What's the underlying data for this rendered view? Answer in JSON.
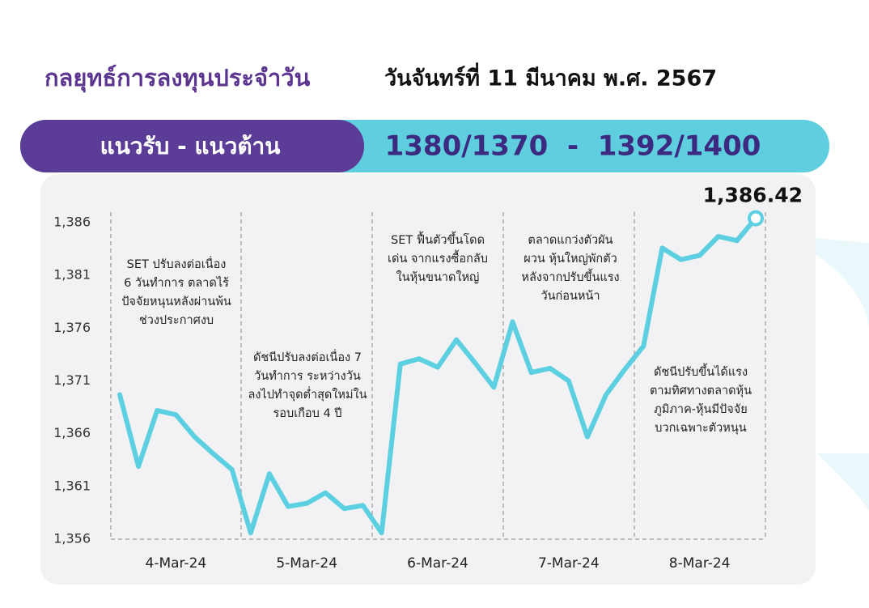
{
  "header": {
    "title": "กลยุทธ์การลงทุนประจำวัน",
    "date": "วันจันทร์ที่ 11 มีนาคม พ.ศ. 2567",
    "band_label": "แนวรับ - แนวต้าน",
    "band_levels": "1380/1370  -  1392/1400"
  },
  "chart_data": {
    "type": "line",
    "categories": [
      null,
      null,
      null,
      "4-Mar-24",
      null,
      null,
      null,
      null,
      null,
      null,
      "5-Mar-24",
      null,
      null,
      null,
      null,
      null,
      null,
      "6-Mar-24",
      null,
      null,
      null,
      null,
      null,
      null,
      "7-Mar-24",
      null,
      null,
      null,
      null,
      null,
      null,
      "8-Mar-24",
      null,
      null,
      null
    ],
    "values": [
      1369.7,
      1362.9,
      1368.2,
      1367.8,
      1365.7,
      1364.1,
      1362.6,
      1356.6,
      1362.2,
      1359.1,
      1359.4,
      1360.4,
      1358.9,
      1359.2,
      1356.6,
      1372.6,
      1373.1,
      1372.3,
      1374.9,
      1372.7,
      1370.4,
      1376.6,
      1371.8,
      1372.2,
      1371.0,
      1365.7,
      1369.7,
      1372.1,
      1374.3,
      1383.6,
      1382.5,
      1382.9,
      1384.7,
      1384.3,
      1386.42
    ],
    "value_labels": [
      null,
      null,
      null,
      null,
      null,
      null,
      null,
      null,
      null,
      null,
      null,
      null,
      null,
      null,
      null,
      null,
      null,
      null,
      null,
      null,
      null,
      null,
      null,
      null,
      null,
      null,
      null,
      null,
      null,
      null,
      null,
      null,
      null,
      null,
      "1,386.42"
    ],
    "color": "#5ccfe0",
    "ylim": [
      1356,
      1388
    ],
    "yticks": [
      {
        "value": 1356,
        "label": "1,356"
      },
      {
        "value": 1361,
        "label": "1,361"
      },
      {
        "value": 1366,
        "label": "1,366"
      },
      {
        "value": 1371,
        "label": "1,371"
      },
      {
        "value": 1376,
        "label": "1,376"
      },
      {
        "value": 1381,
        "label": "1,381"
      },
      {
        "value": 1386,
        "label": "1,386"
      }
    ],
    "grid": false,
    "annotations": [
      [
        "SET ปรับลงต่อเนื่อง",
        "6 วันทำการ ตลาดไร้",
        "ปัจจัยหนุนหลังผ่านพ้น",
        "ช่วงประกาศงบ"
      ],
      [
        "ดัชนีปรับลงต่อเนื่อง 7",
        "วันทำการ ระหว่างวัน",
        "ลงไปทำจุดต่ำสุดใหม่ใน",
        "รอบเกือบ 4 ปี"
      ],
      [
        "SET ฟื้นตัวขึ้นโดด",
        "เด่น จากแรงซื้อกลับ",
        "ในหุ้นขนาดใหญ่"
      ],
      [
        "ตลาดแกว่งตัวผัน",
        "ผวน หุ้นใหญ่พักตัว",
        "หลังจากปรับขึ้นแรง",
        "วันก่อนหน้า"
      ],
      [
        "ดัชนีปรับขึ้นได้แรง",
        "ตามทิศทางตลาดหุ้น",
        "ภูมิภาค-หุ้นมีปัจจัย",
        "บวกเฉพาะตัวหนุน"
      ]
    ]
  }
}
